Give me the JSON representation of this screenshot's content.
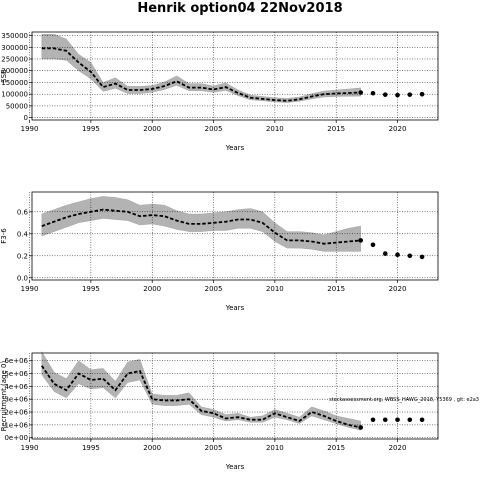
{
  "title": "Henrik option04 22Nov2018",
  "chart_data": [
    {
      "type": "line",
      "xlabel": "Years",
      "ylabel": "SSB",
      "xlim": [
        1990.2,
        2023.3
      ],
      "ylim": [
        -10000,
        365000
      ],
      "xticks": [
        1990,
        1995,
        2000,
        2005,
        2010,
        2015,
        2020
      ],
      "yticks": [
        0,
        50000,
        100000,
        150000,
        200000,
        250000,
        300000,
        350000
      ],
      "ytick_labels": [
        "0",
        "50000",
        "100000",
        "150000",
        "200000",
        "250000",
        "300000",
        "350000"
      ],
      "grid": true,
      "series": [
        {
          "x": [
            1991,
            1992,
            1993,
            1994,
            1995,
            1996,
            1997,
            1998,
            1999,
            2000,
            2001,
            2002,
            2003,
            2004,
            2005,
            2006,
            2007,
            2008,
            2009,
            2010,
            2011,
            2012,
            2013,
            2014,
            2015,
            2016,
            2017
          ],
          "y": [
            295000,
            295000,
            285000,
            235000,
            195000,
            130000,
            145000,
            118000,
            118000,
            122000,
            135000,
            155000,
            128000,
            128000,
            120000,
            130000,
            105000,
            85000,
            80000,
            75000,
            72000,
            78000,
            90000,
            100000,
            103000,
            105000,
            107000
          ],
          "lower": [
            250000,
            250000,
            245000,
            200000,
            165000,
            112000,
            125000,
            103000,
            103000,
            108000,
            120000,
            138000,
            115000,
            115000,
            108000,
            116000,
            94000,
            76000,
            72000,
            67000,
            64000,
            70000,
            80000,
            88000,
            90000,
            91000,
            92000
          ],
          "upper": [
            355000,
            355000,
            335000,
            270000,
            235000,
            150000,
            170000,
            133000,
            133000,
            137000,
            152000,
            178000,
            145000,
            145000,
            135000,
            148000,
            118000,
            96000,
            90000,
            85000,
            82000,
            88000,
            102000,
            113000,
            118000,
            122000,
            127000
          ]
        },
        {
          "name": "projection",
          "x": [
            2018,
            2019,
            2020,
            2021,
            2022
          ],
          "y": [
            104000,
            98000,
            96000,
            98000,
            100000
          ]
        }
      ]
    },
    {
      "type": "line",
      "xlabel": "Years",
      "ylabel": "F3-6",
      "xlim": [
        1990.2,
        2023.3
      ],
      "ylim": [
        -0.02,
        0.78
      ],
      "xticks": [
        1990,
        1995,
        2000,
        2005,
        2010,
        2015,
        2020
      ],
      "yticks": [
        0,
        0.2,
        0.4,
        0.6
      ],
      "ytick_labels": [
        "0.0",
        "0.2",
        "0.4",
        "0.6"
      ],
      "grid": true,
      "series": [
        {
          "x": [
            1991,
            1992,
            1993,
            1994,
            1995,
            1996,
            1997,
            1998,
            1999,
            2000,
            2001,
            2002,
            2003,
            2004,
            2005,
            2006,
            2007,
            2008,
            2009,
            2010,
            2011,
            2012,
            2013,
            2014,
            2015,
            2016,
            2017
          ],
          "y": [
            0.47,
            0.51,
            0.55,
            0.58,
            0.6,
            0.62,
            0.61,
            0.6,
            0.56,
            0.57,
            0.56,
            0.52,
            0.49,
            0.49,
            0.5,
            0.51,
            0.53,
            0.53,
            0.5,
            0.41,
            0.34,
            0.34,
            0.33,
            0.31,
            0.32,
            0.33,
            0.34
          ],
          "lower": [
            0.38,
            0.42,
            0.46,
            0.5,
            0.52,
            0.54,
            0.53,
            0.52,
            0.48,
            0.49,
            0.47,
            0.44,
            0.42,
            0.42,
            0.43,
            0.43,
            0.45,
            0.45,
            0.42,
            0.33,
            0.27,
            0.27,
            0.26,
            0.24,
            0.24,
            0.24,
            0.24
          ],
          "upper": [
            0.58,
            0.62,
            0.66,
            0.69,
            0.72,
            0.74,
            0.73,
            0.71,
            0.66,
            0.67,
            0.66,
            0.61,
            0.58,
            0.58,
            0.59,
            0.6,
            0.62,
            0.63,
            0.6,
            0.5,
            0.42,
            0.42,
            0.41,
            0.39,
            0.42,
            0.45,
            0.47
          ]
        },
        {
          "name": "projection",
          "x": [
            2018,
            2019,
            2020,
            2021,
            2022
          ],
          "y": [
            0.3,
            0.22,
            0.21,
            0.2,
            0.19
          ]
        }
      ]
    },
    {
      "type": "line",
      "xlabel": "Years",
      "ylabel": "Recruitment (age 0)",
      "xlim": [
        1990.2,
        2023.3
      ],
      "ylim": [
        -100000,
        6600000
      ],
      "xticks": [
        1990,
        1995,
        2000,
        2005,
        2010,
        2015,
        2020
      ],
      "yticks": [
        0,
        1000000,
        2000000,
        3000000,
        4000000,
        5000000,
        6000000
      ],
      "ytick_labels": [
        "0e+00",
        "1e+06",
        "2e+06",
        "3e+06",
        "4e+06",
        "5e+06",
        "6e+06"
      ],
      "grid": true,
      "annotation": "stockassessment.org, WBSS_HAWG_2018, Y5369 , git: e2a3",
      "series": [
        {
          "x": [
            1991,
            1992,
            1993,
            1994,
            1995,
            1996,
            1997,
            1998,
            1999,
            2000,
            2001,
            2002,
            2003,
            2004,
            2005,
            2006,
            2007,
            2008,
            2009,
            2010,
            2011,
            2012,
            2013,
            2014,
            2015,
            2016,
            2017
          ],
          "y": [
            5600000,
            4200000,
            3700000,
            5000000,
            4500000,
            4600000,
            3700000,
            5000000,
            5200000,
            3000000,
            2900000,
            2900000,
            3000000,
            2100000,
            1900000,
            1500000,
            1600000,
            1400000,
            1400000,
            1900000,
            1600000,
            1300000,
            2000000,
            1700000,
            1300000,
            1000000,
            800000
          ],
          "lower": [
            4900000,
            3600000,
            3100000,
            4200000,
            3800000,
            3900000,
            3100000,
            4300000,
            4500000,
            2600000,
            2500000,
            2500000,
            2600000,
            1800000,
            1600000,
            1300000,
            1400000,
            1200000,
            1200000,
            1600000,
            1400000,
            1100000,
            1700000,
            1400000,
            1100000,
            800000,
            600000
          ],
          "upper": [
            6700000,
            5100000,
            4600000,
            6000000,
            5300000,
            5400000,
            4400000,
            5900000,
            6100000,
            3400000,
            3300000,
            3300000,
            3500000,
            2400000,
            2200000,
            1800000,
            1900000,
            1600000,
            1700000,
            2200000,
            1900000,
            1600000,
            2400000,
            2100000,
            1700000,
            1500000,
            1300000
          ]
        },
        {
          "name": "projection",
          "x": [
            2018,
            2019,
            2020,
            2021,
            2022
          ],
          "y": [
            1400000,
            1400000,
            1400000,
            1400000,
            1400000
          ]
        }
      ]
    }
  ]
}
